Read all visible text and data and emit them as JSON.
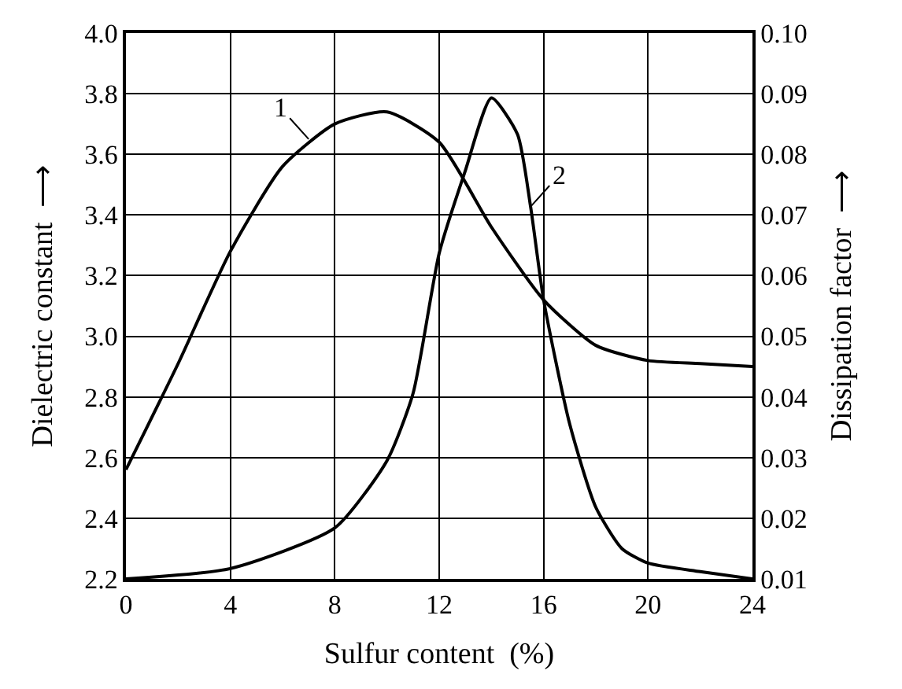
{
  "chart_data": {
    "type": "line",
    "xlabel": "Sulfur content  (%)",
    "ylabel": "Dielectric constant  ⟶",
    "y2label": "Dissipation factor  ⟶",
    "x": [
      0,
      2,
      4,
      6,
      8,
      10,
      12,
      14,
      16,
      18,
      20,
      22,
      24
    ],
    "series": [
      {
        "color": "#000000",
        "values": [
          2.56,
          2.91,
          3.28,
          3.56,
          3.7,
          3.74,
          3.64,
          3.36,
          3.12,
          2.97,
          2.92,
          2.91,
          2.9
        ]
      },
      {
        "color": "#000000",
        "axis": "y2",
        "x": [
          0,
          4,
          8,
          10,
          11,
          12,
          13,
          14,
          15,
          15.5,
          16,
          17,
          18,
          19,
          20,
          22,
          24
        ],
        "values": [
          0.01,
          0.0117,
          0.0184,
          0.0295,
          0.0406,
          0.0637,
          0.0773,
          0.0893,
          0.0833,
          0.0714,
          0.056,
          0.0355,
          0.0218,
          0.015,
          0.0126,
          0.0112,
          0.01
        ]
      }
    ],
    "annotations": [
      {
        "text": "1",
        "x": 7,
        "y": 3.65
      },
      "2"
    ],
    "xlim": [
      0,
      24
    ],
    "xticks": [
      0,
      4,
      8,
      12,
      16,
      20,
      24
    ],
    "ylim": [
      2.2,
      4.0
    ],
    "yticks": [
      {
        "value": 2.2,
        "label": "2.2"
      },
      {
        "value": 2.4,
        "label": "2.4"
      },
      {
        "value": 2.6,
        "label": "2.6"
      },
      {
        "value": 2.8,
        "label": "2.8"
      },
      {
        "value": 3.0,
        "label": "3.0"
      },
      {
        "value": 3.2,
        "label": "3.2"
      },
      {
        "value": 3.4,
        "label": "3.4"
      },
      {
        "value": 3.6,
        "label": "3.6"
      },
      {
        "value": 3.8,
        "label": "3.8"
      },
      {
        "value": 4.0,
        "label": "4.0"
      }
    ],
    "y2lim": [
      0.01,
      0.1
    ],
    "y2ticks": [
      0.01,
      0.02,
      0.03,
      0.04,
      0.05,
      0.06,
      0.07,
      0.08,
      0.09,
      {
        "value": 0.1,
        "label": "0.10"
      }
    ],
    "grid": true,
    "line_style": "solid",
    "marker": "none"
  }
}
